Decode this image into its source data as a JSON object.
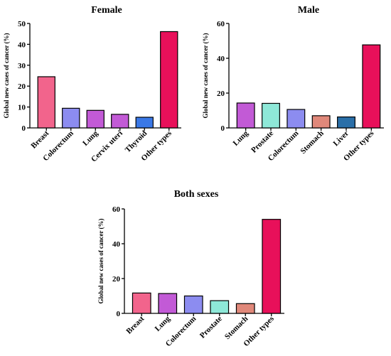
{
  "chart_data": [
    {
      "type": "bar",
      "title": "Female",
      "ylabel": "Global new cases of cancer (%)",
      "ylim": [
        0,
        50
      ],
      "yticks": [
        0,
        10,
        20,
        30,
        40,
        50
      ],
      "categories": [
        "Breast",
        "Colorectum",
        "Lung",
        "Cervix uteri",
        "Thyroid",
        "Other types"
      ],
      "values": [
        24.5,
        9.4,
        8.4,
        6.5,
        5.1,
        46.1
      ],
      "colors": [
        "#f2648c",
        "#8c8cf0",
        "#c25ad6",
        "#c25ad6",
        "#3a78e6",
        "#e8105a"
      ],
      "grid": false
    },
    {
      "type": "bar",
      "title": "Male",
      "ylabel": "Global new cases of cancer (%)",
      "ylim": [
        0,
        60
      ],
      "yticks": [
        0,
        20,
        40,
        60
      ],
      "categories": [
        "Lung",
        "Prostate",
        "Colorectum",
        "Stomach",
        "Liver",
        "Other types"
      ],
      "values": [
        14.3,
        14.1,
        10.6,
        7.0,
        6.3,
        47.7
      ],
      "colors": [
        "#c25ad6",
        "#8ee8d8",
        "#8c8cf0",
        "#e0887a",
        "#2a6fa8",
        "#e8105a"
      ],
      "grid": false
    },
    {
      "type": "bar",
      "title": "Both sexes",
      "ylabel": "Global new cases of cancer (%)",
      "ylim": [
        0,
        60
      ],
      "yticks": [
        0,
        20,
        40,
        60
      ],
      "categories": [
        "Breast",
        "Lung",
        "Colorectum",
        "Prostate",
        "Stomach",
        "Other types"
      ],
      "values": [
        11.7,
        11.4,
        10.0,
        7.3,
        5.6,
        54.0
      ],
      "colors": [
        "#f2648c",
        "#c25ad6",
        "#8c8cf0",
        "#8ee8d8",
        "#e0887a",
        "#e8105a"
      ],
      "grid": false
    }
  ]
}
